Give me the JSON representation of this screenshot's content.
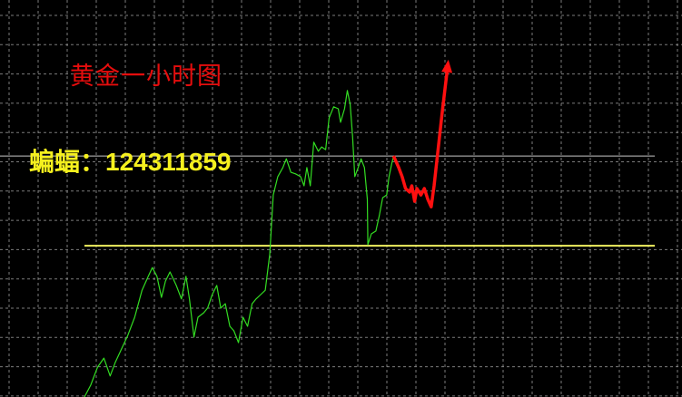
{
  "chart_data": {
    "type": "line",
    "title": "黄金一小时图",
    "annotation": {
      "label": "蝙蝠：",
      "number": "124311859"
    },
    "grid": true,
    "background_color": "#000000",
    "grid_color": "#9a9a9a",
    "xlim": [
      0,
      100
    ],
    "ylim": [
      0,
      100
    ],
    "series": [
      {
        "role": "price",
        "color": "#33dd22",
        "points": [
          [
            0,
            0
          ],
          [
            1.1,
            3
          ],
          [
            2.3,
            7.5
          ],
          [
            3.4,
            9.8
          ],
          [
            4.5,
            5.3
          ],
          [
            5.4,
            8.7
          ],
          [
            6.5,
            12.1
          ],
          [
            7.6,
            15.5
          ],
          [
            8.8,
            20.1
          ],
          [
            10.1,
            26.9
          ],
          [
            11.2,
            30.4
          ],
          [
            11.9,
            32.6
          ],
          [
            12.7,
            30.4
          ],
          [
            13.5,
            25.1
          ],
          [
            14.2,
            29.2
          ],
          [
            15,
            31.5
          ],
          [
            16.1,
            28.1
          ],
          [
            17,
            24.7
          ],
          [
            17.8,
            30.4
          ],
          [
            18.4,
            24.7
          ],
          [
            19.2,
            15.1
          ],
          [
            19.9,
            20.1
          ],
          [
            20.9,
            21.2
          ],
          [
            21.6,
            22.4
          ],
          [
            22.4,
            25.8
          ],
          [
            23.2,
            28.1
          ],
          [
            23.9,
            22.4
          ],
          [
            24.7,
            23.5
          ],
          [
            25.5,
            17.8
          ],
          [
            26.2,
            16.7
          ],
          [
            27,
            13.7
          ],
          [
            27.8,
            20.1
          ],
          [
            28.6,
            17.8
          ],
          [
            29.4,
            23.5
          ],
          [
            30.1,
            24.7
          ],
          [
            30.9,
            25.8
          ],
          [
            31.7,
            26.9
          ],
          [
            32.5,
            36.1
          ],
          [
            33.1,
            50.9
          ],
          [
            33.9,
            55.5
          ],
          [
            34.8,
            57.8
          ],
          [
            35.4,
            60
          ],
          [
            36.2,
            56.6
          ],
          [
            37,
            56.2
          ],
          [
            37.9,
            55.5
          ],
          [
            38.5,
            53.2
          ],
          [
            39,
            57.8
          ],
          [
            39.6,
            53.2
          ],
          [
            40.2,
            64.2
          ],
          [
            41,
            61.9
          ],
          [
            41.6,
            63
          ],
          [
            42.3,
            62.3
          ],
          [
            42.9,
            70.3
          ],
          [
            43.7,
            73.1
          ],
          [
            44.5,
            72.6
          ],
          [
            44.9,
            69.2
          ],
          [
            45.6,
            72.6
          ],
          [
            46.1,
            77.2
          ],
          [
            46.6,
            73.7
          ],
          [
            47,
            65.8
          ],
          [
            47.4,
            55.5
          ],
          [
            48,
            57.8
          ],
          [
            48.5,
            60
          ],
          [
            49.1,
            57.8
          ],
          [
            49.6,
            49.8
          ],
          [
            49.7,
            38.4
          ],
          [
            50.3,
            41.1
          ],
          [
            51.1,
            41.8
          ],
          [
            51.7,
            45.7
          ],
          [
            52.3,
            50.2
          ],
          [
            53,
            50.9
          ],
          [
            53.4,
            55.5
          ],
          [
            53.9,
            58.9
          ],
          [
            54.2,
            60.7
          ]
        ]
      },
      {
        "role": "forecast",
        "color": "#ff1010",
        "arrow": true,
        "points": [
          [
            54.2,
            60.7
          ],
          [
            55.1,
            57.8
          ],
          [
            55.7,
            55.5
          ],
          [
            56.3,
            52.5
          ],
          [
            57,
            51.6
          ],
          [
            57.4,
            53.2
          ],
          [
            57.9,
            49.3
          ],
          [
            58.3,
            52.5
          ],
          [
            59,
            50.9
          ],
          [
            59.6,
            52.5
          ],
          [
            60.2,
            49.8
          ],
          [
            60.8,
            47.9
          ],
          [
            61.3,
            53.2
          ],
          [
            62,
            62.3
          ],
          [
            62.8,
            72.6
          ],
          [
            63.6,
            82.2
          ],
          [
            63.7,
            83.6
          ]
        ]
      }
    ],
    "horizontal_lines": [
      {
        "color": "#f0f060",
        "y": 38.1,
        "x_from": 0,
        "x_to": 100
      },
      {
        "color": "#c8c8c8",
        "y": 60.7,
        "x_from": -15,
        "x_to": 100
      }
    ]
  }
}
